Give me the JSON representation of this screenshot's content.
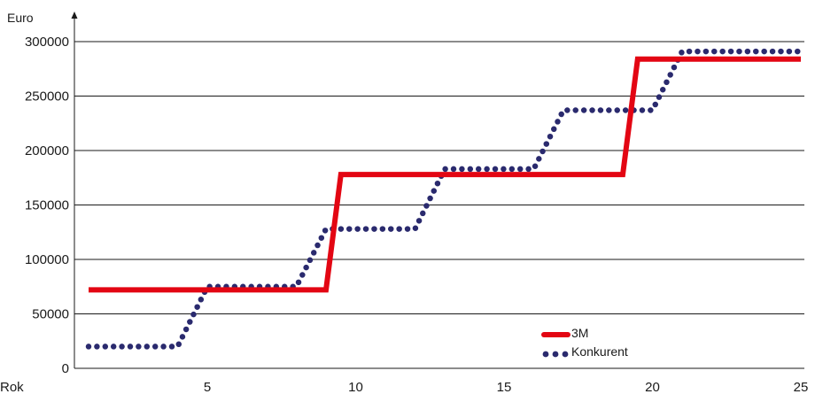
{
  "chart_data": {
    "type": "line",
    "ylabel": "Euro",
    "xlabel": "Rok",
    "x_ticks": [
      5,
      10,
      15,
      20,
      25
    ],
    "y_ticks": [
      0,
      50000,
      100000,
      150000,
      200000,
      250000,
      300000
    ],
    "ylim": [
      0,
      300000
    ],
    "xlim": [
      0,
      25
    ],
    "grid": "horizontal",
    "legend_position": "bottom-right",
    "series": [
      {
        "name": "3M",
        "color": "#e30613",
        "style": "solid",
        "x": [
          1,
          9,
          9.5,
          19,
          19.5,
          25
        ],
        "y": [
          72000,
          72000,
          178000,
          178000,
          284000,
          284000
        ]
      },
      {
        "name": "Konkurent",
        "color": "#2a2a6e",
        "style": "dotted",
        "x": [
          1,
          4,
          5,
          8,
          9,
          12,
          13,
          16,
          17,
          20,
          21,
          25
        ],
        "y": [
          20000,
          20000,
          75000,
          75000,
          128000,
          128000,
          183000,
          183000,
          237000,
          237000,
          291000,
          291000
        ]
      }
    ]
  }
}
